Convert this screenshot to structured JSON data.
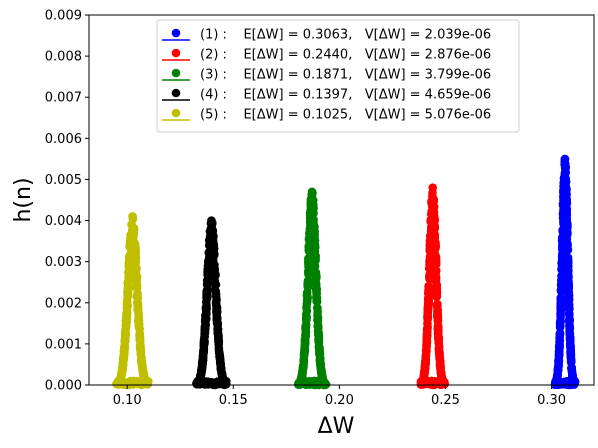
{
  "chart_data": {
    "type": "scatter",
    "title": "",
    "xlabel": "ΔW",
    "ylabel": "h(n)",
    "xlim": [
      0.082,
      0.32
    ],
    "ylim": [
      0,
      0.009
    ],
    "xticks": [
      0.1,
      0.15,
      0.2,
      0.25,
      0.3
    ],
    "xtick_labels": [
      "0.10",
      "0.15",
      "0.20",
      "0.25",
      "0.30"
    ],
    "yticks": [
      0.0,
      0.001,
      0.002,
      0.003,
      0.004,
      0.005,
      0.006,
      0.007,
      0.008,
      0.009
    ],
    "ytick_labels": [
      "0.000",
      "0.001",
      "0.002",
      "0.003",
      "0.004",
      "0.005",
      "0.006",
      "0.007",
      "0.008",
      "0.009"
    ],
    "grid": false,
    "legend_position": "top-center",
    "series": [
      {
        "name": "(1) :    E[ΔW] = 0.3063,   V[ΔW] = 2.039e-06",
        "color": "#0000ff",
        "mean": 0.3063,
        "variance": 2.039e-06,
        "peak": 0.0055
      },
      {
        "name": "(2) :    E[ΔW] = 0.2440,   V[ΔW] = 2.876e-06",
        "color": "#ff0000",
        "mean": 0.244,
        "variance": 2.876e-06,
        "peak": 0.0048
      },
      {
        "name": "(3) :    E[ΔW] = 0.1871,   V[ΔW] = 3.799e-06",
        "color": "#008000",
        "mean": 0.1871,
        "variance": 3.799e-06,
        "peak": 0.0047
      },
      {
        "name": "(4) :    E[ΔW] = 0.1397,   V[ΔW] = 4.659e-06",
        "color": "#000000",
        "mean": 0.1397,
        "variance": 4.659e-06,
        "peak": 0.004
      },
      {
        "name": "(5) :    E[ΔW] = 0.1025,   V[ΔW] = 5.076e-06",
        "color": "#bfbf00",
        "mean": 0.1025,
        "variance": 5.076e-06,
        "peak": 0.0041
      }
    ]
  }
}
